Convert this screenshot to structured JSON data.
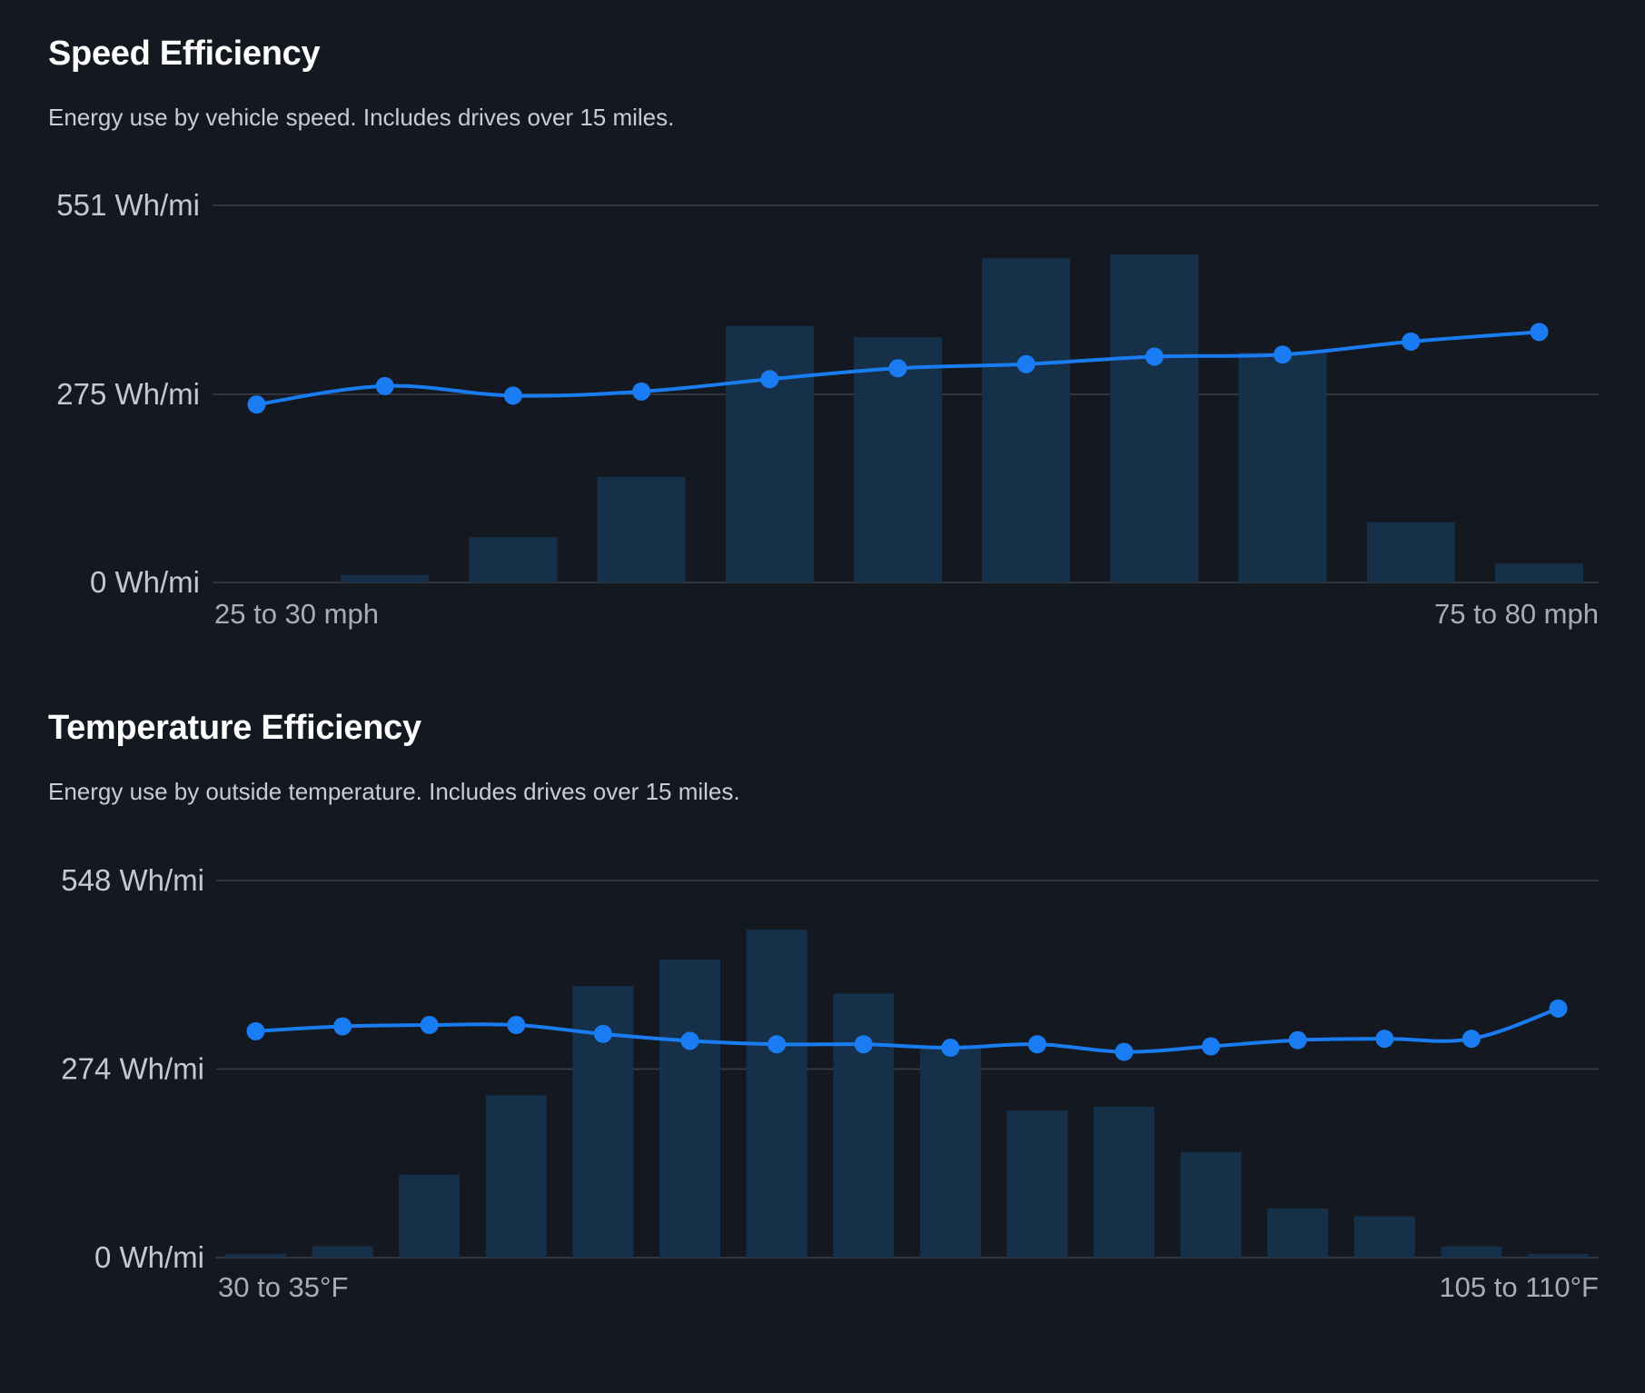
{
  "colors": {
    "background": "#141820",
    "bar": "#16304a",
    "line": "#1a7cf2",
    "grid": "#3a3f48"
  },
  "chart_data": [
    {
      "type": "bar+line",
      "title": "Speed Efficiency",
      "subtitle": "Energy use by vehicle speed. Includes drives over 15 miles.",
      "ylim": [
        0,
        551
      ],
      "y_ticks": [
        "551 Wh/mi",
        "275 Wh/mi",
        "0 Wh/mi"
      ],
      "y_tick_values": [
        551,
        275,
        0
      ],
      "x_tick_labels": [
        "25 to 30 mph",
        "75 to 80 mph"
      ],
      "grid": true,
      "bar_series": {
        "values_relative": [
          0,
          0.02,
          0.12,
          0.28,
          0.68,
          0.65,
          0.86,
          0.87,
          0.61,
          0.16,
          0.05
        ]
      },
      "line_series": {
        "values": [
          260,
          287,
          273,
          279,
          297,
          313,
          319,
          330,
          333,
          352,
          366
        ]
      }
    },
    {
      "type": "bar+line",
      "title": "Temperature Efficiency",
      "subtitle": "Energy use by outside temperature. Includes drives over 15 miles.",
      "ylim": [
        0,
        548
      ],
      "y_ticks": [
        "548 Wh/mi",
        "274 Wh/mi",
        "0 Wh/mi"
      ],
      "y_tick_values": [
        548,
        274,
        0
      ],
      "x_tick_labels": [
        "30 to 35°F",
        "105 to 110°F"
      ],
      "grid": true,
      "bar_series": {
        "values_relative": [
          0.01,
          0.03,
          0.22,
          0.43,
          0.72,
          0.79,
          0.87,
          0.7,
          0.56,
          0.39,
          0.4,
          0.28,
          0.13,
          0.11,
          0.03,
          0.01
        ]
      },
      "line_series": {
        "values": [
          329,
          336,
          338,
          338,
          325,
          315,
          310,
          310,
          305,
          310,
          299,
          307,
          316,
          318,
          318,
          362
        ]
      }
    }
  ]
}
